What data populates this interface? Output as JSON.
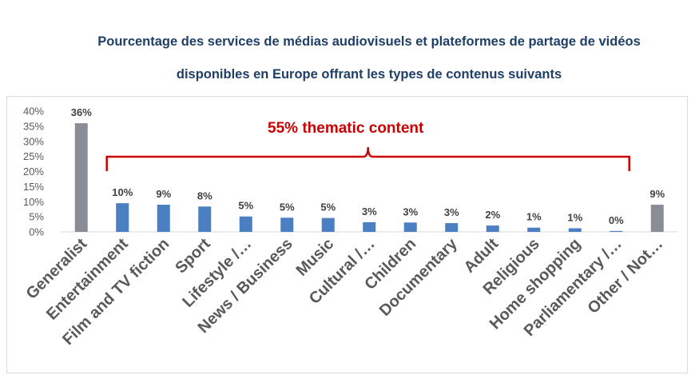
{
  "title": {
    "line1": "Pourcentage des services de médias audiovisuels et plateformes de partage de vidéos",
    "line2": "disponibles en Europe offrant les types de contenus suivants"
  },
  "chart_data": {
    "type": "bar",
    "categories": [
      "Generalist",
      "Entertainment",
      "Film and TV fiction",
      "Sport",
      "Lifestyle /…",
      "News / Business",
      "Music",
      "Cultural /…",
      "Children",
      "Documentary",
      "Adult",
      "Religious",
      "Home shopping",
      "Parliamentary /…",
      "Other / Not…"
    ],
    "values": [
      36,
      9.5,
      9,
      8.4,
      5.1,
      4.7,
      4.6,
      3.2,
      3.1,
      2.9,
      2.1,
      1.4,
      1.2,
      0.3,
      9
    ],
    "data_labels": [
      "36%",
      "10%",
      "9%",
      "8%",
      "5%",
      "5%",
      "5%",
      "3%",
      "3%",
      "3%",
      "2%",
      "1%",
      "1%",
      "0%",
      "9%"
    ],
    "bar_colors": [
      "#8a8d96",
      "#4a7fc1",
      "#4a7fc1",
      "#4a7fc1",
      "#4a7fc1",
      "#4a7fc1",
      "#4a7fc1",
      "#4a7fc1",
      "#4a7fc1",
      "#4a7fc1",
      "#4a7fc1",
      "#4a7fc1",
      "#4a7fc1",
      "#4a7fc1",
      "#8a8d96"
    ],
    "yticks": [
      "0%",
      "5%",
      "10%",
      "15%",
      "20%",
      "25%",
      "30%",
      "35%",
      "40%"
    ],
    "ylim": [
      0,
      40
    ],
    "annotation": {
      "text": "55% thematic content",
      "color": "#cc0000",
      "span": [
        "Entertainment",
        "Parliamentary /…"
      ]
    },
    "xlabel": "",
    "ylabel": "",
    "grid": false,
    "legend": "none"
  }
}
